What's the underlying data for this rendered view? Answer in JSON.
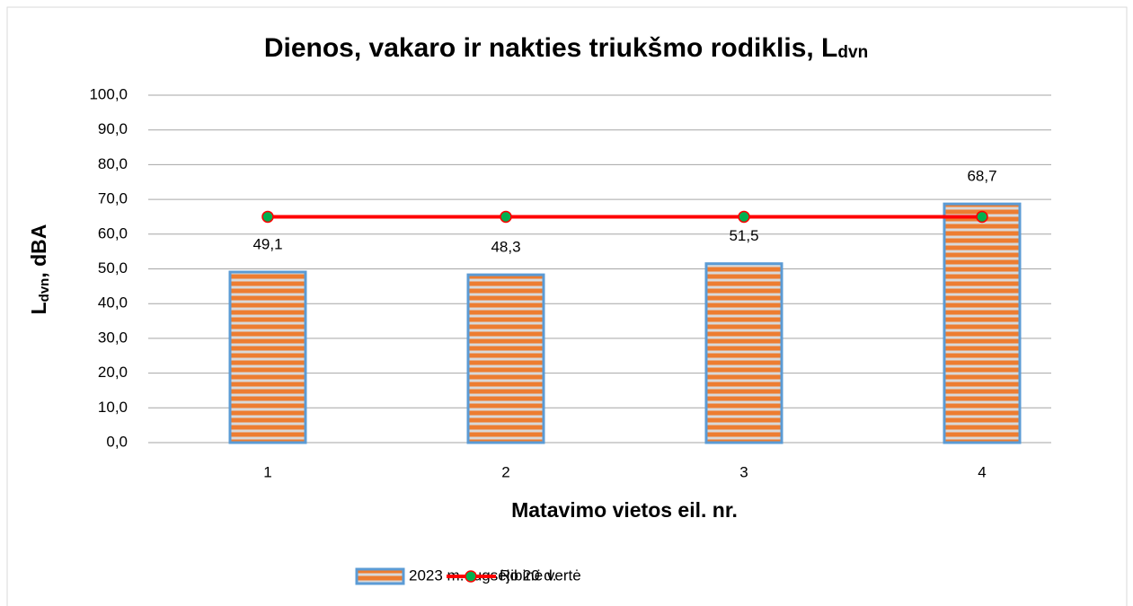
{
  "chart_data": {
    "type": "bar",
    "title": [
      "Dienos, vakaro ir nakties triukšmo rodiklis, L",
      "dvn"
    ],
    "y_label": [
      "L",
      "dvn",
      ", dBA"
    ],
    "x_label": "Matavimo vietos eil. nr.",
    "categories": [
      "1",
      "2",
      "3",
      "4"
    ],
    "series": [
      {
        "name": "2023 m. rugsėjo 20 d.",
        "type": "bar",
        "color": "#ed7d31",
        "edge_color": "#5b9bd5",
        "values": [
          49.1,
          48.3,
          51.5,
          68.7
        ],
        "value_labels": [
          "49,1",
          "48,3",
          "51,5",
          "68,7"
        ]
      },
      {
        "name": "Ribinė vertė",
        "type": "line",
        "color": "#ff0000",
        "marker_color": "#00b050",
        "values": [
          65,
          65,
          65,
          65
        ]
      }
    ],
    "ylim": [
      0,
      100
    ],
    "yticks": [
      {
        "value": 0,
        "label": "0,0"
      },
      {
        "value": 10,
        "label": "10,0"
      },
      {
        "value": 20,
        "label": "20,0"
      },
      {
        "value": 30,
        "label": "30,0"
      },
      {
        "value": 40,
        "label": "40,0"
      },
      {
        "value": 50,
        "label": "50,0"
      },
      {
        "value": 60,
        "label": "60,0"
      },
      {
        "value": 70,
        "label": "70,0"
      },
      {
        "value": 80,
        "label": "80,0"
      },
      {
        "value": 90,
        "label": "90,0"
      },
      {
        "value": 100,
        "label": "100,0"
      }
    ],
    "grid": true,
    "legend": "bottom"
  }
}
